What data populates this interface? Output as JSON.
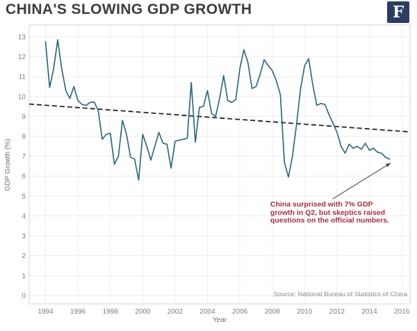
{
  "header": {
    "title": "CHINA'S SLOWING GDP GROWTH",
    "logo_letter": "F",
    "logo_bg": "#2c3c63"
  },
  "chart_data": {
    "type": "line",
    "title": "CHINA'S SLOWING GDP GROWTH",
    "xlabel": "Year",
    "ylabel": "GDP Growth (%)",
    "source": "Source: National Bureau of Statistics of China",
    "x_start": 1994.0,
    "x_step": 0.25,
    "x_unit": "year (quarterly GDP growth, % YoY)",
    "values": [
      12.75,
      10.45,
      11.4,
      12.85,
      11.4,
      10.3,
      9.9,
      10.5,
      9.8,
      9.6,
      9.55,
      9.7,
      9.73,
      9.3,
      7.85,
      8.1,
      8.15,
      6.6,
      7.0,
      8.8,
      8.1,
      6.95,
      6.85,
      5.8,
      8.1,
      7.5,
      6.8,
      7.5,
      8.2,
      7.65,
      7.6,
      6.4,
      7.75,
      7.8,
      7.85,
      7.9,
      10.7,
      7.7,
      9.45,
      9.5,
      10.3,
      9.15,
      9.0,
      9.9,
      11.05,
      9.8,
      9.7,
      9.85,
      11.4,
      12.35,
      11.7,
      10.4,
      10.5,
      11.1,
      11.85,
      11.55,
      11.3,
      10.8,
      10.1,
      6.7,
      5.95,
      7.0,
      8.6,
      10.4,
      11.55,
      11.9,
      10.6,
      9.55,
      9.65,
      9.6,
      9.1,
      8.65,
      8.2,
      7.5,
      7.15,
      7.6,
      7.4,
      7.5,
      7.35,
      7.65,
      7.3,
      7.4,
      7.2,
      7.15,
      6.95,
      6.85
    ],
    "xlim": [
      1992.99,
      2016.51
    ],
    "ylim": [
      -0.42,
      13.59
    ],
    "x_ticks": [
      1994,
      1996,
      1998,
      2000,
      2002,
      2004,
      2006,
      2008,
      2010,
      2012,
      2014,
      2016
    ],
    "y_ticks": [
      0,
      1,
      2,
      3,
      4,
      5,
      6,
      7,
      8,
      9,
      10,
      11,
      12,
      13
    ],
    "grid": true,
    "legend_position": "none",
    "line_color": "#31697e",
    "trend_line": {
      "style": "dashed",
      "color": "#242424",
      "x": [
        1992.99,
        2016.51
      ],
      "y": [
        9.62,
        8.22
      ]
    },
    "annotation": {
      "lines": [
        "China surprised with 7% GDP",
        "growth in Q2, but skeptics raised",
        "questions on the official numbers."
      ],
      "color": "#a62e3e",
      "x": 2007.88,
      "y": 4.75,
      "arrow_from": {
        "x": 2011.72,
        "y": 4.85
      },
      "arrow_color": "#3f3f3f"
    }
  }
}
